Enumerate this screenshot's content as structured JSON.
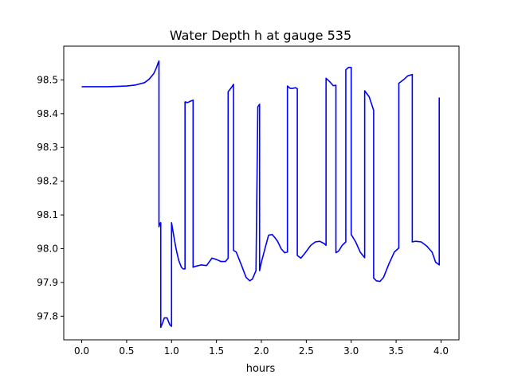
{
  "chart_data": {
    "type": "line",
    "title": "Water Depth h at gauge 535",
    "xlabel": "hours",
    "ylabel": "",
    "xlim": [
      -0.2,
      4.2
    ],
    "ylim": [
      97.73,
      98.6
    ],
    "xticks": [
      0.0,
      0.5,
      1.0,
      1.5,
      2.0,
      2.5,
      3.0,
      3.5,
      4.0
    ],
    "xtick_labels": [
      "0.0",
      "0.5",
      "1.0",
      "1.5",
      "2.0",
      "2.5",
      "3.0",
      "3.5",
      "4.0"
    ],
    "yticks": [
      97.8,
      97.9,
      98.0,
      98.1,
      98.2,
      98.3,
      98.4,
      98.5
    ],
    "ytick_labels": [
      "97.8",
      "97.9",
      "98.0",
      "98.1",
      "98.2",
      "98.3",
      "98.4",
      "98.5"
    ],
    "grid": false,
    "line_color": "#0000ff",
    "series": [
      {
        "name": "",
        "x": [
          0.0,
          0.3,
          0.5,
          0.6,
          0.7,
          0.75,
          0.8,
          0.83,
          0.85,
          0.86,
          0.86,
          0.87,
          0.88,
          0.88,
          0.9,
          0.92,
          0.95,
          0.98,
          1.0,
          1.0,
          1.02,
          1.05,
          1.08,
          1.11,
          1.13,
          1.15,
          1.15,
          1.18,
          1.21,
          1.24,
          1.24,
          1.27,
          1.33,
          1.39,
          1.45,
          1.5,
          1.55,
          1.6,
          1.63,
          1.63,
          1.66,
          1.69,
          1.69,
          1.72,
          1.78,
          1.83,
          1.87,
          1.9,
          1.94,
          1.96,
          1.96,
          1.98,
          1.98,
          2.0,
          2.04,
          2.08,
          2.12,
          2.15,
          2.18,
          2.22,
          2.26,
          2.29,
          2.29,
          2.32,
          2.35,
          2.38,
          2.4,
          2.4,
          2.44,
          2.48,
          2.55,
          2.6,
          2.65,
          2.7,
          2.72,
          2.72,
          2.76,
          2.8,
          2.83,
          2.83,
          2.86,
          2.9,
          2.94,
          2.94,
          2.97,
          3.0,
          3.0,
          3.05,
          3.1,
          3.15,
          3.15,
          3.2,
          3.25,
          3.25,
          3.28,
          3.32,
          3.36,
          3.42,
          3.48,
          3.53,
          3.53,
          3.58,
          3.63,
          3.68,
          3.68,
          3.72,
          3.78,
          3.84,
          3.9,
          3.94,
          3.98,
          3.98
        ],
        "y": [
          98.48,
          98.48,
          98.482,
          98.485,
          98.492,
          98.502,
          98.518,
          98.535,
          98.55,
          98.556,
          98.065,
          98.075,
          98.077,
          97.767,
          97.78,
          97.795,
          97.795,
          97.775,
          97.77,
          98.077,
          98.045,
          98.0,
          97.965,
          97.945,
          97.94,
          97.94,
          98.435,
          98.433,
          98.437,
          98.44,
          97.945,
          97.948,
          97.952,
          97.95,
          97.972,
          97.968,
          97.962,
          97.962,
          97.972,
          98.465,
          98.475,
          98.487,
          97.995,
          97.99,
          97.95,
          97.915,
          97.905,
          97.91,
          97.935,
          98.41,
          98.42,
          98.428,
          97.935,
          97.96,
          98.0,
          98.04,
          98.042,
          98.033,
          98.022,
          98.0,
          97.988,
          97.99,
          98.482,
          98.475,
          98.475,
          98.477,
          98.474,
          97.98,
          97.972,
          97.985,
          98.01,
          98.02,
          98.022,
          98.015,
          98.01,
          98.505,
          98.495,
          98.483,
          98.484,
          97.988,
          97.993,
          98.01,
          98.02,
          98.53,
          98.537,
          98.537,
          98.042,
          98.02,
          97.99,
          97.973,
          98.468,
          98.45,
          98.41,
          97.913,
          97.905,
          97.903,
          97.915,
          97.955,
          97.99,
          98.002,
          98.49,
          98.5,
          98.512,
          98.516,
          98.02,
          98.022,
          98.02,
          98.008,
          97.99,
          97.96,
          97.952,
          98.448
        ]
      }
    ]
  }
}
